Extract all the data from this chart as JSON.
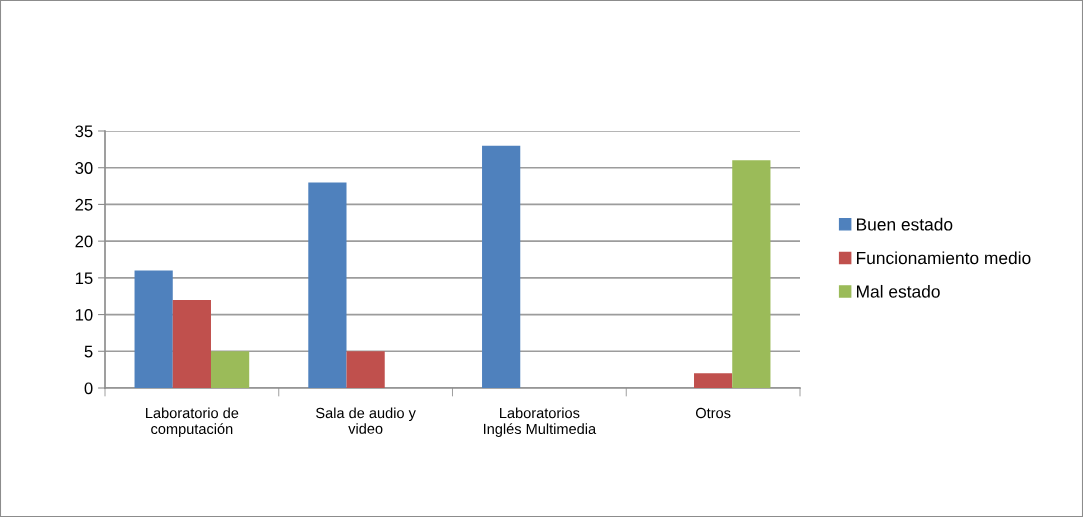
{
  "chart_data": {
    "type": "bar",
    "categories": [
      "Laboratorio de\ncomputación",
      "Sala de audio y\nvideo",
      "Laboratorios\nInglés Multimedia",
      "Otros"
    ],
    "series": [
      {
        "name": "Buen estado",
        "color": "#4f81bd",
        "values": [
          16,
          28,
          33,
          0
        ]
      },
      {
        "name": "Funcionamiento medio",
        "color": "#c0504d",
        "values": [
          12,
          5,
          0,
          2
        ]
      },
      {
        "name": "Mal estado",
        "color": "#9bbb59",
        "values": [
          5,
          0,
          0,
          31
        ]
      }
    ],
    "ylim": [
      0,
      35
    ],
    "yticks": [
      0,
      5,
      10,
      15,
      20,
      25,
      30,
      35
    ],
    "grid": "y",
    "legend": "right"
  }
}
